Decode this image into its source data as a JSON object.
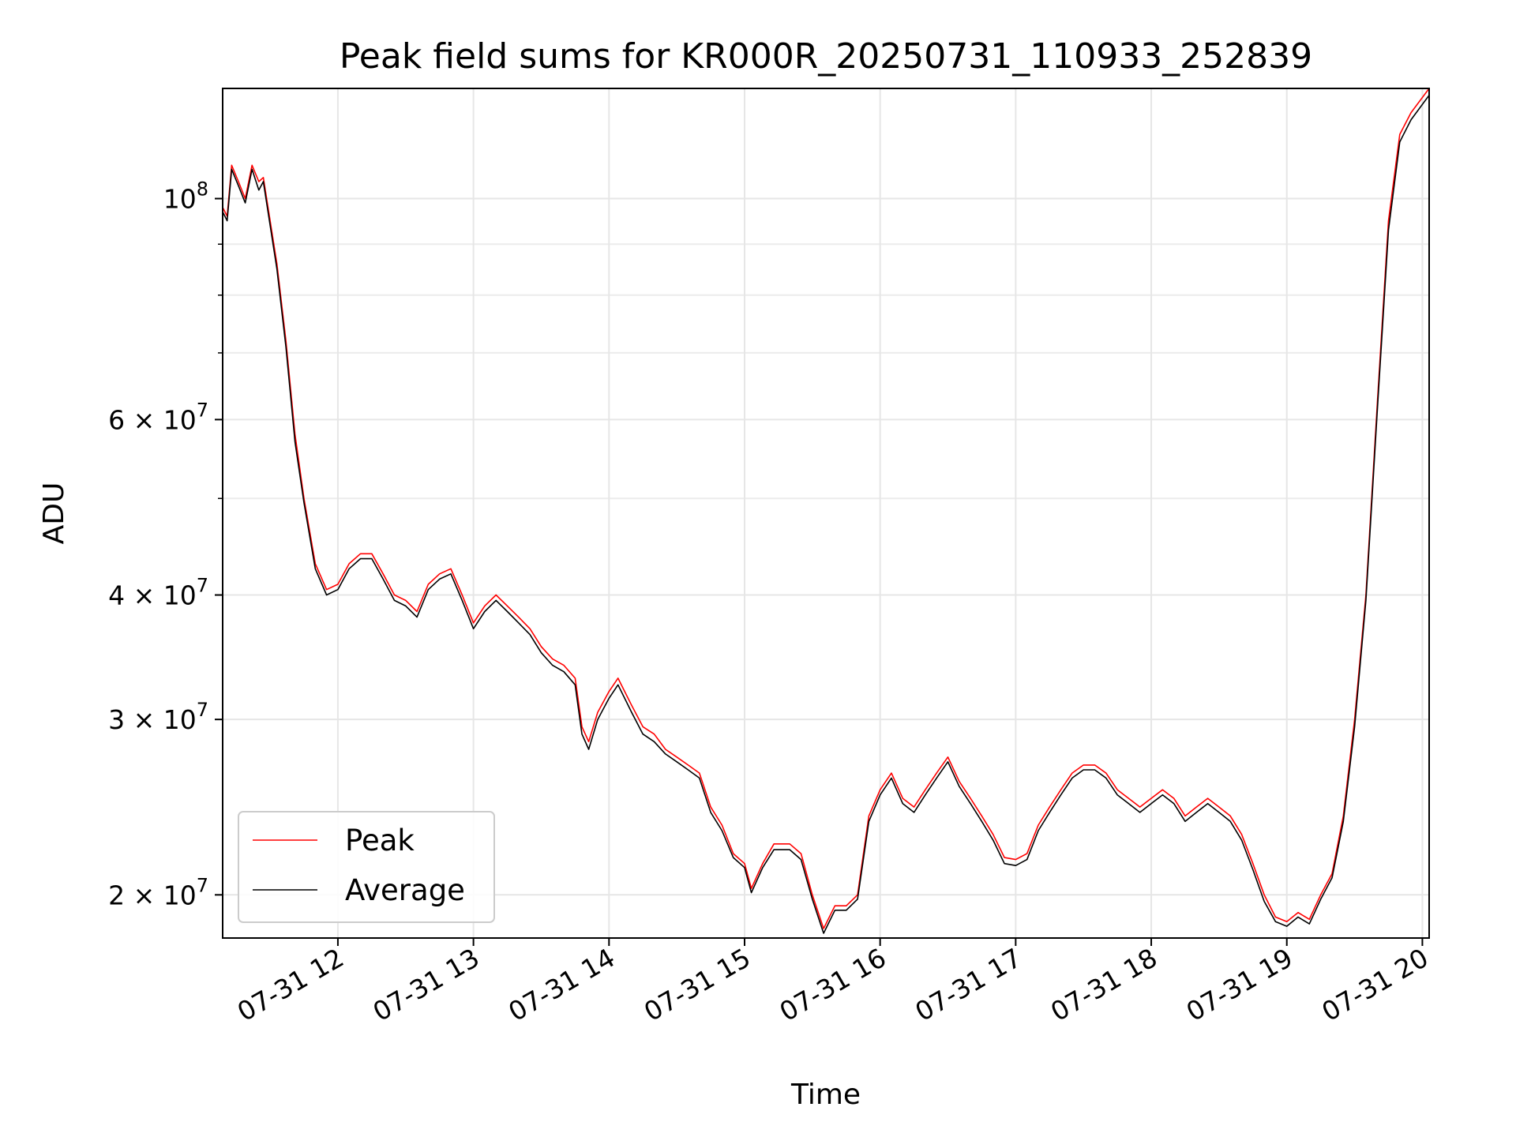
{
  "chart_data": {
    "type": "line",
    "title": "Peak field sums for KR000R_20250731_110933_252839",
    "xlabel": "Time",
    "ylabel": "ADU",
    "yscale": "log",
    "ylim": [
      18100000,
      129000000
    ],
    "xlim": [
      "07-31 11:09",
      "07-31 20:03"
    ],
    "grid": true,
    "legend_position": "lower-left",
    "x_ticks": [
      {
        "time": "07-31 12:00",
        "label": "07-31 12"
      },
      {
        "time": "07-31 13:00",
        "label": "07-31 13"
      },
      {
        "time": "07-31 14:00",
        "label": "07-31 14"
      },
      {
        "time": "07-31 15:00",
        "label": "07-31 15"
      },
      {
        "time": "07-31 16:00",
        "label": "07-31 16"
      },
      {
        "time": "07-31 17:00",
        "label": "07-31 17"
      },
      {
        "time": "07-31 18:00",
        "label": "07-31 18"
      },
      {
        "time": "07-31 19:00",
        "label": "07-31 19"
      },
      {
        "time": "07-31 20:00",
        "label": "07-31 20"
      }
    ],
    "y_ticks": [
      {
        "value": 20000000,
        "base": "2 × 10",
        "exp": "7"
      },
      {
        "value": 30000000,
        "base": "3 × 10",
        "exp": "7"
      },
      {
        "value": 40000000,
        "base": "4 × 10",
        "exp": "7"
      },
      {
        "value": 60000000,
        "base": "6 × 10",
        "exp": "7"
      },
      {
        "value": 100000000,
        "base": "10",
        "exp": "8"
      }
    ],
    "y_minor_ticks": [
      50000000,
      70000000,
      80000000,
      90000000
    ],
    "series": [
      {
        "name": "Peak",
        "color": "#ff0000",
        "points": [
          [
            "07-31 11:09",
            98000000
          ],
          [
            "07-31 11:11",
            96000000
          ],
          [
            "07-31 11:13",
            108000000
          ],
          [
            "07-31 11:16",
            104000000
          ],
          [
            "07-31 11:19",
            100000000
          ],
          [
            "07-31 11:22",
            108000000
          ],
          [
            "07-31 11:25",
            104000000
          ],
          [
            "07-31 11:27",
            105000000
          ],
          [
            "07-31 11:33",
            86000000
          ],
          [
            "07-31 11:37",
            72000000
          ],
          [
            "07-31 11:41",
            58000000
          ],
          [
            "07-31 11:45",
            50000000
          ],
          [
            "07-31 11:50",
            43000000
          ],
          [
            "07-31 11:55",
            40500000
          ],
          [
            "07-31 12:00",
            41000000
          ],
          [
            "07-31 12:05",
            43000000
          ],
          [
            "07-31 12:10",
            44000000
          ],
          [
            "07-31 12:15",
            44000000
          ],
          [
            "07-31 12:20",
            42000000
          ],
          [
            "07-31 12:25",
            40000000
          ],
          [
            "07-31 12:30",
            39500000
          ],
          [
            "07-31 12:35",
            38500000
          ],
          [
            "07-31 12:40",
            41000000
          ],
          [
            "07-31 12:45",
            42000000
          ],
          [
            "07-31 12:50",
            42500000
          ],
          [
            "07-31 12:55",
            40000000
          ],
          [
            "07-31 13:00",
            37500000
          ],
          [
            "07-31 13:05",
            39000000
          ],
          [
            "07-31 13:10",
            40000000
          ],
          [
            "07-31 13:15",
            39000000
          ],
          [
            "07-31 13:20",
            38000000
          ],
          [
            "07-31 13:25",
            37000000
          ],
          [
            "07-31 13:30",
            35500000
          ],
          [
            "07-31 13:35",
            34500000
          ],
          [
            "07-31 13:40",
            34000000
          ],
          [
            "07-31 13:45",
            33000000
          ],
          [
            "07-31 13:48",
            29500000
          ],
          [
            "07-31 13:51",
            28500000
          ],
          [
            "07-31 13:55",
            30500000
          ],
          [
            "07-31 14:00",
            32000000
          ],
          [
            "07-31 14:04",
            33000000
          ],
          [
            "07-31 14:10",
            31000000
          ],
          [
            "07-31 14:15",
            29500000
          ],
          [
            "07-31 14:20",
            29000000
          ],
          [
            "07-31 14:25",
            28000000
          ],
          [
            "07-31 14:30",
            27500000
          ],
          [
            "07-31 14:35",
            27000000
          ],
          [
            "07-31 14:40",
            26500000
          ],
          [
            "07-31 14:45",
            24500000
          ],
          [
            "07-31 14:50",
            23500000
          ],
          [
            "07-31 14:55",
            22000000
          ],
          [
            "07-31 15:00",
            21500000
          ],
          [
            "07-31 15:03",
            20300000
          ],
          [
            "07-31 15:08",
            21500000
          ],
          [
            "07-31 15:13",
            22500000
          ],
          [
            "07-31 15:20",
            22500000
          ],
          [
            "07-31 15:25",
            22000000
          ],
          [
            "07-31 15:30",
            20000000
          ],
          [
            "07-31 15:35",
            18500000
          ],
          [
            "07-31 15:40",
            19500000
          ],
          [
            "07-31 15:45",
            19500000
          ],
          [
            "07-31 15:50",
            20000000
          ],
          [
            "07-31 15:55",
            24000000
          ],
          [
            "07-31 16:00",
            25500000
          ],
          [
            "07-31 16:05",
            26500000
          ],
          [
            "07-31 16:10",
            25000000
          ],
          [
            "07-31 16:15",
            24500000
          ],
          [
            "07-31 16:20",
            25500000
          ],
          [
            "07-31 16:25",
            26500000
          ],
          [
            "07-31 16:30",
            27500000
          ],
          [
            "07-31 16:35",
            26000000
          ],
          [
            "07-31 16:40",
            25000000
          ],
          [
            "07-31 16:45",
            24000000
          ],
          [
            "07-31 16:50",
            23000000
          ],
          [
            "07-31 16:55",
            21800000
          ],
          [
            "07-31 17:00",
            21700000
          ],
          [
            "07-31 17:05",
            22000000
          ],
          [
            "07-31 17:10",
            23500000
          ],
          [
            "07-31 17:15",
            24500000
          ],
          [
            "07-31 17:20",
            25500000
          ],
          [
            "07-31 17:25",
            26500000
          ],
          [
            "07-31 17:30",
            27000000
          ],
          [
            "07-31 17:35",
            27000000
          ],
          [
            "07-31 17:40",
            26500000
          ],
          [
            "07-31 17:45",
            25500000
          ],
          [
            "07-31 17:50",
            25000000
          ],
          [
            "07-31 17:55",
            24500000
          ],
          [
            "07-31 18:00",
            25000000
          ],
          [
            "07-31 18:05",
            25500000
          ],
          [
            "07-31 18:10",
            25000000
          ],
          [
            "07-31 18:15",
            24000000
          ],
          [
            "07-31 18:20",
            24500000
          ],
          [
            "07-31 18:25",
            25000000
          ],
          [
            "07-31 18:30",
            24500000
          ],
          [
            "07-31 18:35",
            24000000
          ],
          [
            "07-31 18:40",
            23000000
          ],
          [
            "07-31 18:45",
            21500000
          ],
          [
            "07-31 18:50",
            20000000
          ],
          [
            "07-31 18:55",
            19000000
          ],
          [
            "07-31 19:00",
            18800000
          ],
          [
            "07-31 19:05",
            19200000
          ],
          [
            "07-31 19:10",
            18900000
          ],
          [
            "07-31 19:15",
            20000000
          ],
          [
            "07-31 19:20",
            21000000
          ],
          [
            "07-31 19:25",
            24000000
          ],
          [
            "07-31 19:30",
            30000000
          ],
          [
            "07-31 19:35",
            40000000
          ],
          [
            "07-31 19:40",
            62000000
          ],
          [
            "07-31 19:45",
            95000000
          ],
          [
            "07-31 19:50",
            116000000
          ],
          [
            "07-31 19:55",
            122000000
          ],
          [
            "07-31 20:03",
            129000000
          ]
        ]
      },
      {
        "name": "Average",
        "color": "#000000",
        "points": [
          [
            "07-31 11:09",
            97000000
          ],
          [
            "07-31 11:11",
            95000000
          ],
          [
            "07-31 11:13",
            107000000
          ],
          [
            "07-31 11:16",
            103000000
          ],
          [
            "07-31 11:19",
            99000000
          ],
          [
            "07-31 11:22",
            107000000
          ],
          [
            "07-31 11:25",
            102000000
          ],
          [
            "07-31 11:27",
            104000000
          ],
          [
            "07-31 11:33",
            85000000
          ],
          [
            "07-31 11:37",
            71000000
          ],
          [
            "07-31 11:41",
            57000000
          ],
          [
            "07-31 11:45",
            49500000
          ],
          [
            "07-31 11:50",
            42500000
          ],
          [
            "07-31 11:55",
            40000000
          ],
          [
            "07-31 12:00",
            40500000
          ],
          [
            "07-31 12:05",
            42500000
          ],
          [
            "07-31 12:10",
            43500000
          ],
          [
            "07-31 12:15",
            43500000
          ],
          [
            "07-31 12:20",
            41500000
          ],
          [
            "07-31 12:25",
            39500000
          ],
          [
            "07-31 12:30",
            39000000
          ],
          [
            "07-31 12:35",
            38000000
          ],
          [
            "07-31 12:40",
            40500000
          ],
          [
            "07-31 12:45",
            41500000
          ],
          [
            "07-31 12:50",
            42000000
          ],
          [
            "07-31 12:55",
            39500000
          ],
          [
            "07-31 13:00",
            37000000
          ],
          [
            "07-31 13:05",
            38500000
          ],
          [
            "07-31 13:10",
            39500000
          ],
          [
            "07-31 13:15",
            38500000
          ],
          [
            "07-31 13:20",
            37500000
          ],
          [
            "07-31 13:25",
            36500000
          ],
          [
            "07-31 13:30",
            35000000
          ],
          [
            "07-31 13:35",
            34000000
          ],
          [
            "07-31 13:40",
            33500000
          ],
          [
            "07-31 13:45",
            32500000
          ],
          [
            "07-31 13:48",
            29000000
          ],
          [
            "07-31 13:51",
            28000000
          ],
          [
            "07-31 13:55",
            30000000
          ],
          [
            "07-31 14:00",
            31500000
          ],
          [
            "07-31 14:04",
            32500000
          ],
          [
            "07-31 14:10",
            30500000
          ],
          [
            "07-31 14:15",
            29000000
          ],
          [
            "07-31 14:20",
            28500000
          ],
          [
            "07-31 14:25",
            27700000
          ],
          [
            "07-31 14:30",
            27200000
          ],
          [
            "07-31 14:35",
            26700000
          ],
          [
            "07-31 14:40",
            26200000
          ],
          [
            "07-31 14:45",
            24200000
          ],
          [
            "07-31 14:50",
            23200000
          ],
          [
            "07-31 14:55",
            21800000
          ],
          [
            "07-31 15:00",
            21300000
          ],
          [
            "07-31 15:03",
            20100000
          ],
          [
            "07-31 15:08",
            21300000
          ],
          [
            "07-31 15:13",
            22200000
          ],
          [
            "07-31 15:20",
            22200000
          ],
          [
            "07-31 15:25",
            21700000
          ],
          [
            "07-31 15:30",
            19800000
          ],
          [
            "07-31 15:35",
            18300000
          ],
          [
            "07-31 15:40",
            19300000
          ],
          [
            "07-31 15:45",
            19300000
          ],
          [
            "07-31 15:50",
            19800000
          ],
          [
            "07-31 15:55",
            23700000
          ],
          [
            "07-31 16:00",
            25200000
          ],
          [
            "07-31 16:05",
            26200000
          ],
          [
            "07-31 16:10",
            24700000
          ],
          [
            "07-31 16:15",
            24200000
          ],
          [
            "07-31 16:20",
            25200000
          ],
          [
            "07-31 16:25",
            26200000
          ],
          [
            "07-31 16:30",
            27200000
          ],
          [
            "07-31 16:35",
            25700000
          ],
          [
            "07-31 16:40",
            24700000
          ],
          [
            "07-31 16:45",
            23700000
          ],
          [
            "07-31 16:50",
            22700000
          ],
          [
            "07-31 16:55",
            21500000
          ],
          [
            "07-31 17:00",
            21400000
          ],
          [
            "07-31 17:05",
            21700000
          ],
          [
            "07-31 17:10",
            23200000
          ],
          [
            "07-31 17:15",
            24200000
          ],
          [
            "07-31 17:20",
            25200000
          ],
          [
            "07-31 17:25",
            26200000
          ],
          [
            "07-31 17:30",
            26700000
          ],
          [
            "07-31 17:35",
            26700000
          ],
          [
            "07-31 17:40",
            26200000
          ],
          [
            "07-31 17:45",
            25200000
          ],
          [
            "07-31 17:50",
            24700000
          ],
          [
            "07-31 17:55",
            24200000
          ],
          [
            "07-31 18:00",
            24700000
          ],
          [
            "07-31 18:05",
            25200000
          ],
          [
            "07-31 18:10",
            24700000
          ],
          [
            "07-31 18:15",
            23700000
          ],
          [
            "07-31 18:20",
            24200000
          ],
          [
            "07-31 18:25",
            24700000
          ],
          [
            "07-31 18:30",
            24200000
          ],
          [
            "07-31 18:35",
            23700000
          ],
          [
            "07-31 18:40",
            22700000
          ],
          [
            "07-31 18:45",
            21200000
          ],
          [
            "07-31 18:50",
            19700000
          ],
          [
            "07-31 18:55",
            18800000
          ],
          [
            "07-31 19:00",
            18600000
          ],
          [
            "07-31 19:05",
            19000000
          ],
          [
            "07-31 19:10",
            18700000
          ],
          [
            "07-31 19:15",
            19800000
          ],
          [
            "07-31 19:20",
            20800000
          ],
          [
            "07-31 19:25",
            23700000
          ],
          [
            "07-31 19:30",
            29500000
          ],
          [
            "07-31 19:35",
            39500000
          ],
          [
            "07-31 19:40",
            61000000
          ],
          [
            "07-31 19:45",
            93000000
          ],
          [
            "07-31 19:50",
            114000000
          ],
          [
            "07-31 19:55",
            120000000
          ],
          [
            "07-31 20:03",
            127000000
          ]
        ]
      }
    ]
  }
}
